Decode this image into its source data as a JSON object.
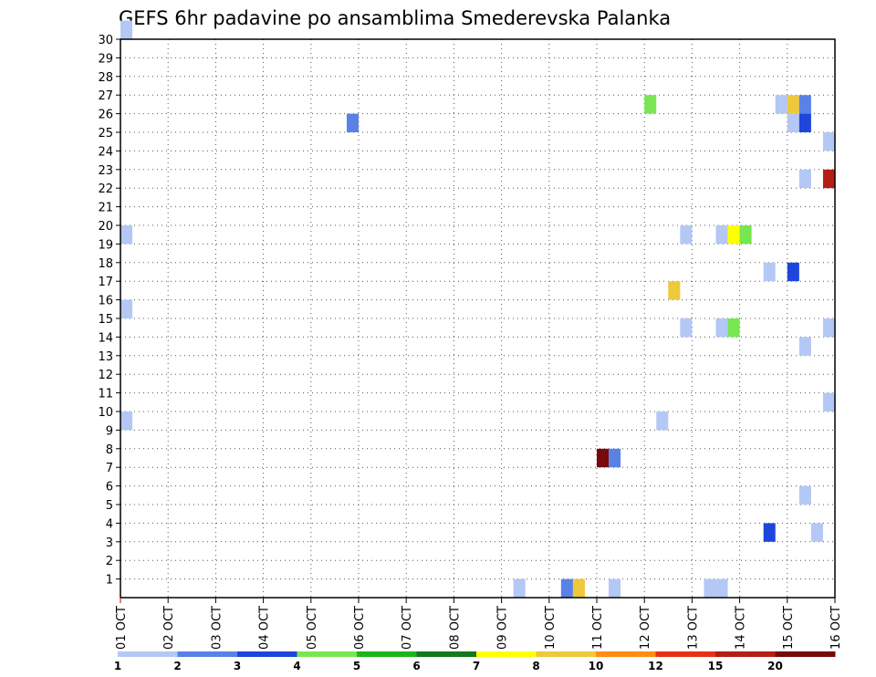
{
  "chart_data": {
    "type": "heatmap",
    "title": "GEFS 6hr padavine po ansamblima Smederevska Palanka",
    "xlabel": "",
    "ylabel": "",
    "x_tick_labels": [
      "01 OCT",
      "02 OCT",
      "03 OCT",
      "04 OCT",
      "05 OCT",
      "06 OCT",
      "07 OCT",
      "08 OCT",
      "09 OCT",
      "10 OCT",
      "11 OCT",
      "12 OCT",
      "13 OCT",
      "14 OCT",
      "15 OCT",
      "16 OCT"
    ],
    "y_tick_labels": [
      "1",
      "2",
      "3",
      "4",
      "5",
      "6",
      "7",
      "8",
      "9",
      "10",
      "11",
      "12",
      "13",
      "14",
      "15",
      "16",
      "17",
      "18",
      "19",
      "20",
      "21",
      "22",
      "23",
      "24",
      "25",
      "26",
      "27",
      "28",
      "29",
      "30"
    ],
    "xlim_days": [
      1,
      16
    ],
    "ylim_members": [
      0,
      30
    ],
    "grid": true,
    "colorbar": {
      "position": "bottom",
      "labels": [
        "1",
        "2",
        "3",
        "4",
        "5",
        "6",
        "7",
        "8",
        "10",
        "12",
        "15",
        "20"
      ],
      "colors": [
        "#b4c8f5",
        "#5a82e6",
        "#1e46dc",
        "#78e650",
        "#1eb41e",
        "#14781e",
        "#ffff00",
        "#f0c83c",
        "#ff8c14",
        "#e63214",
        "#b41e14",
        "#780a0a"
      ]
    },
    "cells": [
      {
        "member": 30,
        "start_day": 1.0,
        "value": 1
      },
      {
        "member": 25,
        "start_day": 5.75,
        "value": 2
      },
      {
        "member": 26,
        "start_day": 12.0,
        "value": 4
      },
      {
        "member": 26,
        "start_day": 14.75,
        "value": 1
      },
      {
        "member": 26,
        "start_day": 15.0,
        "value": 9
      },
      {
        "member": 26,
        "start_day": 15.25,
        "value": 2
      },
      {
        "member": 25,
        "start_day": 15.0,
        "value": 1
      },
      {
        "member": 25,
        "start_day": 15.25,
        "value": 3
      },
      {
        "member": 24,
        "start_day": 15.75,
        "value": 1
      },
      {
        "member": 22,
        "start_day": 15.25,
        "value": 1
      },
      {
        "member": 22,
        "start_day": 15.75,
        "value": 15
      },
      {
        "member": 19,
        "start_day": 1.0,
        "value": 1
      },
      {
        "member": 19,
        "start_day": 12.75,
        "value": 1
      },
      {
        "member": 19,
        "start_day": 13.5,
        "value": 1
      },
      {
        "member": 19,
        "start_day": 13.75,
        "value": 7
      },
      {
        "member": 19,
        "start_day": 14.0,
        "value": 4
      },
      {
        "member": 17,
        "start_day": 14.5,
        "value": 1
      },
      {
        "member": 17,
        "start_day": 15.0,
        "value": 3
      },
      {
        "member": 16,
        "start_day": 12.5,
        "value": 8
      },
      {
        "member": 15,
        "start_day": 1.0,
        "value": 1
      },
      {
        "member": 14,
        "start_day": 12.75,
        "value": 1
      },
      {
        "member": 14,
        "start_day": 13.5,
        "value": 1
      },
      {
        "member": 14,
        "start_day": 13.75,
        "value": 4
      },
      {
        "member": 14,
        "start_day": 15.75,
        "value": 1
      },
      {
        "member": 13,
        "start_day": 15.25,
        "value": 1
      },
      {
        "member": 10,
        "start_day": 15.75,
        "value": 1
      },
      {
        "member": 9,
        "start_day": 1.0,
        "value": 1
      },
      {
        "member": 9,
        "start_day": 12.25,
        "value": 1
      },
      {
        "member": 7,
        "start_day": 11.0,
        "value": 20
      },
      {
        "member": 7,
        "start_day": 11.25,
        "value": 2
      },
      {
        "member": 5,
        "start_day": 15.25,
        "value": 1
      },
      {
        "member": 3,
        "start_day": 14.5,
        "value": 3
      },
      {
        "member": 3,
        "start_day": 15.5,
        "value": 1
      },
      {
        "member": 0,
        "start_day": 9.25,
        "value": 1
      },
      {
        "member": 0,
        "start_day": 10.25,
        "value": 2
      },
      {
        "member": 0,
        "start_day": 10.5,
        "value": 8
      },
      {
        "member": 0,
        "start_day": 11.25,
        "value": 1
      },
      {
        "member": 0,
        "start_day": 13.25,
        "value": 1
      },
      {
        "member": 0,
        "start_day": 13.5,
        "value": 1
      }
    ]
  }
}
